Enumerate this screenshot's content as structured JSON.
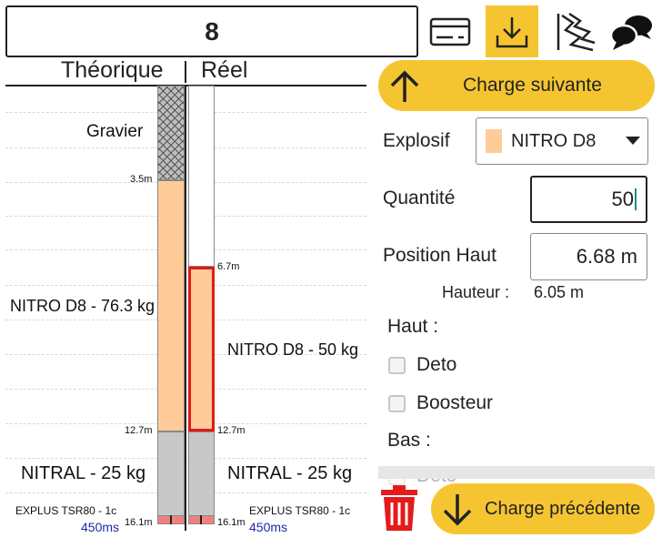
{
  "header": {
    "hole_number": "8",
    "icons": [
      "card-icon",
      "download-icon",
      "blast-icon",
      "chat-icon"
    ]
  },
  "chart_data": {
    "type": "column",
    "headers": {
      "theoretical": "Théorique",
      "actual": "Réel"
    },
    "theoretical": [
      {
        "label": "Gravier",
        "from": 0,
        "to": 3.5,
        "color": "#bbbbbb",
        "pattern": "crosshatch"
      },
      {
        "label": "NITRO D8 - 76.3 kg",
        "from": 3.5,
        "to": 12.7,
        "color": "#ffcc99"
      },
      {
        "label": "NITRAL - 25 kg",
        "from": 12.7,
        "to": 16.1,
        "color": "#c8c8c8"
      }
    ],
    "actual": [
      {
        "label": "",
        "from": 0,
        "to": 6.7,
        "color": "#ffffff"
      },
      {
        "label": "NITRO D8 - 50 kg",
        "from": 6.7,
        "to": 12.7,
        "color": "#ffcc99",
        "selected": true
      },
      {
        "label": "NITRAL - 25 kg",
        "from": 12.7,
        "to": 16.1,
        "color": "#c8c8c8"
      }
    ],
    "depth_labels": {
      "d1": "3.5m",
      "d2": "6.7m",
      "d3": "12.7m",
      "d4": "16.1m"
    },
    "detonator": {
      "label": "EXPLUS TSR80 - 1c",
      "delay": "450ms",
      "color": "#f08080"
    }
  },
  "panel": {
    "next_label": "Charge suivante",
    "prev_label": "Charge précédente",
    "explosive_label": "Explosif",
    "explosive_value": "NITRO D8",
    "explosive_color": "#ffcc99",
    "quantity_label": "Quantité",
    "quantity_value": "50",
    "position_label": "Position Haut",
    "position_value": "6.68 m",
    "height_label": "Hauteur :",
    "height_value": "6.05 m",
    "top_label": "Haut :",
    "top_options": [
      "Deto",
      "Boosteur"
    ],
    "bottom_label": "Bas :",
    "bottom_options": [
      "Deto"
    ]
  }
}
